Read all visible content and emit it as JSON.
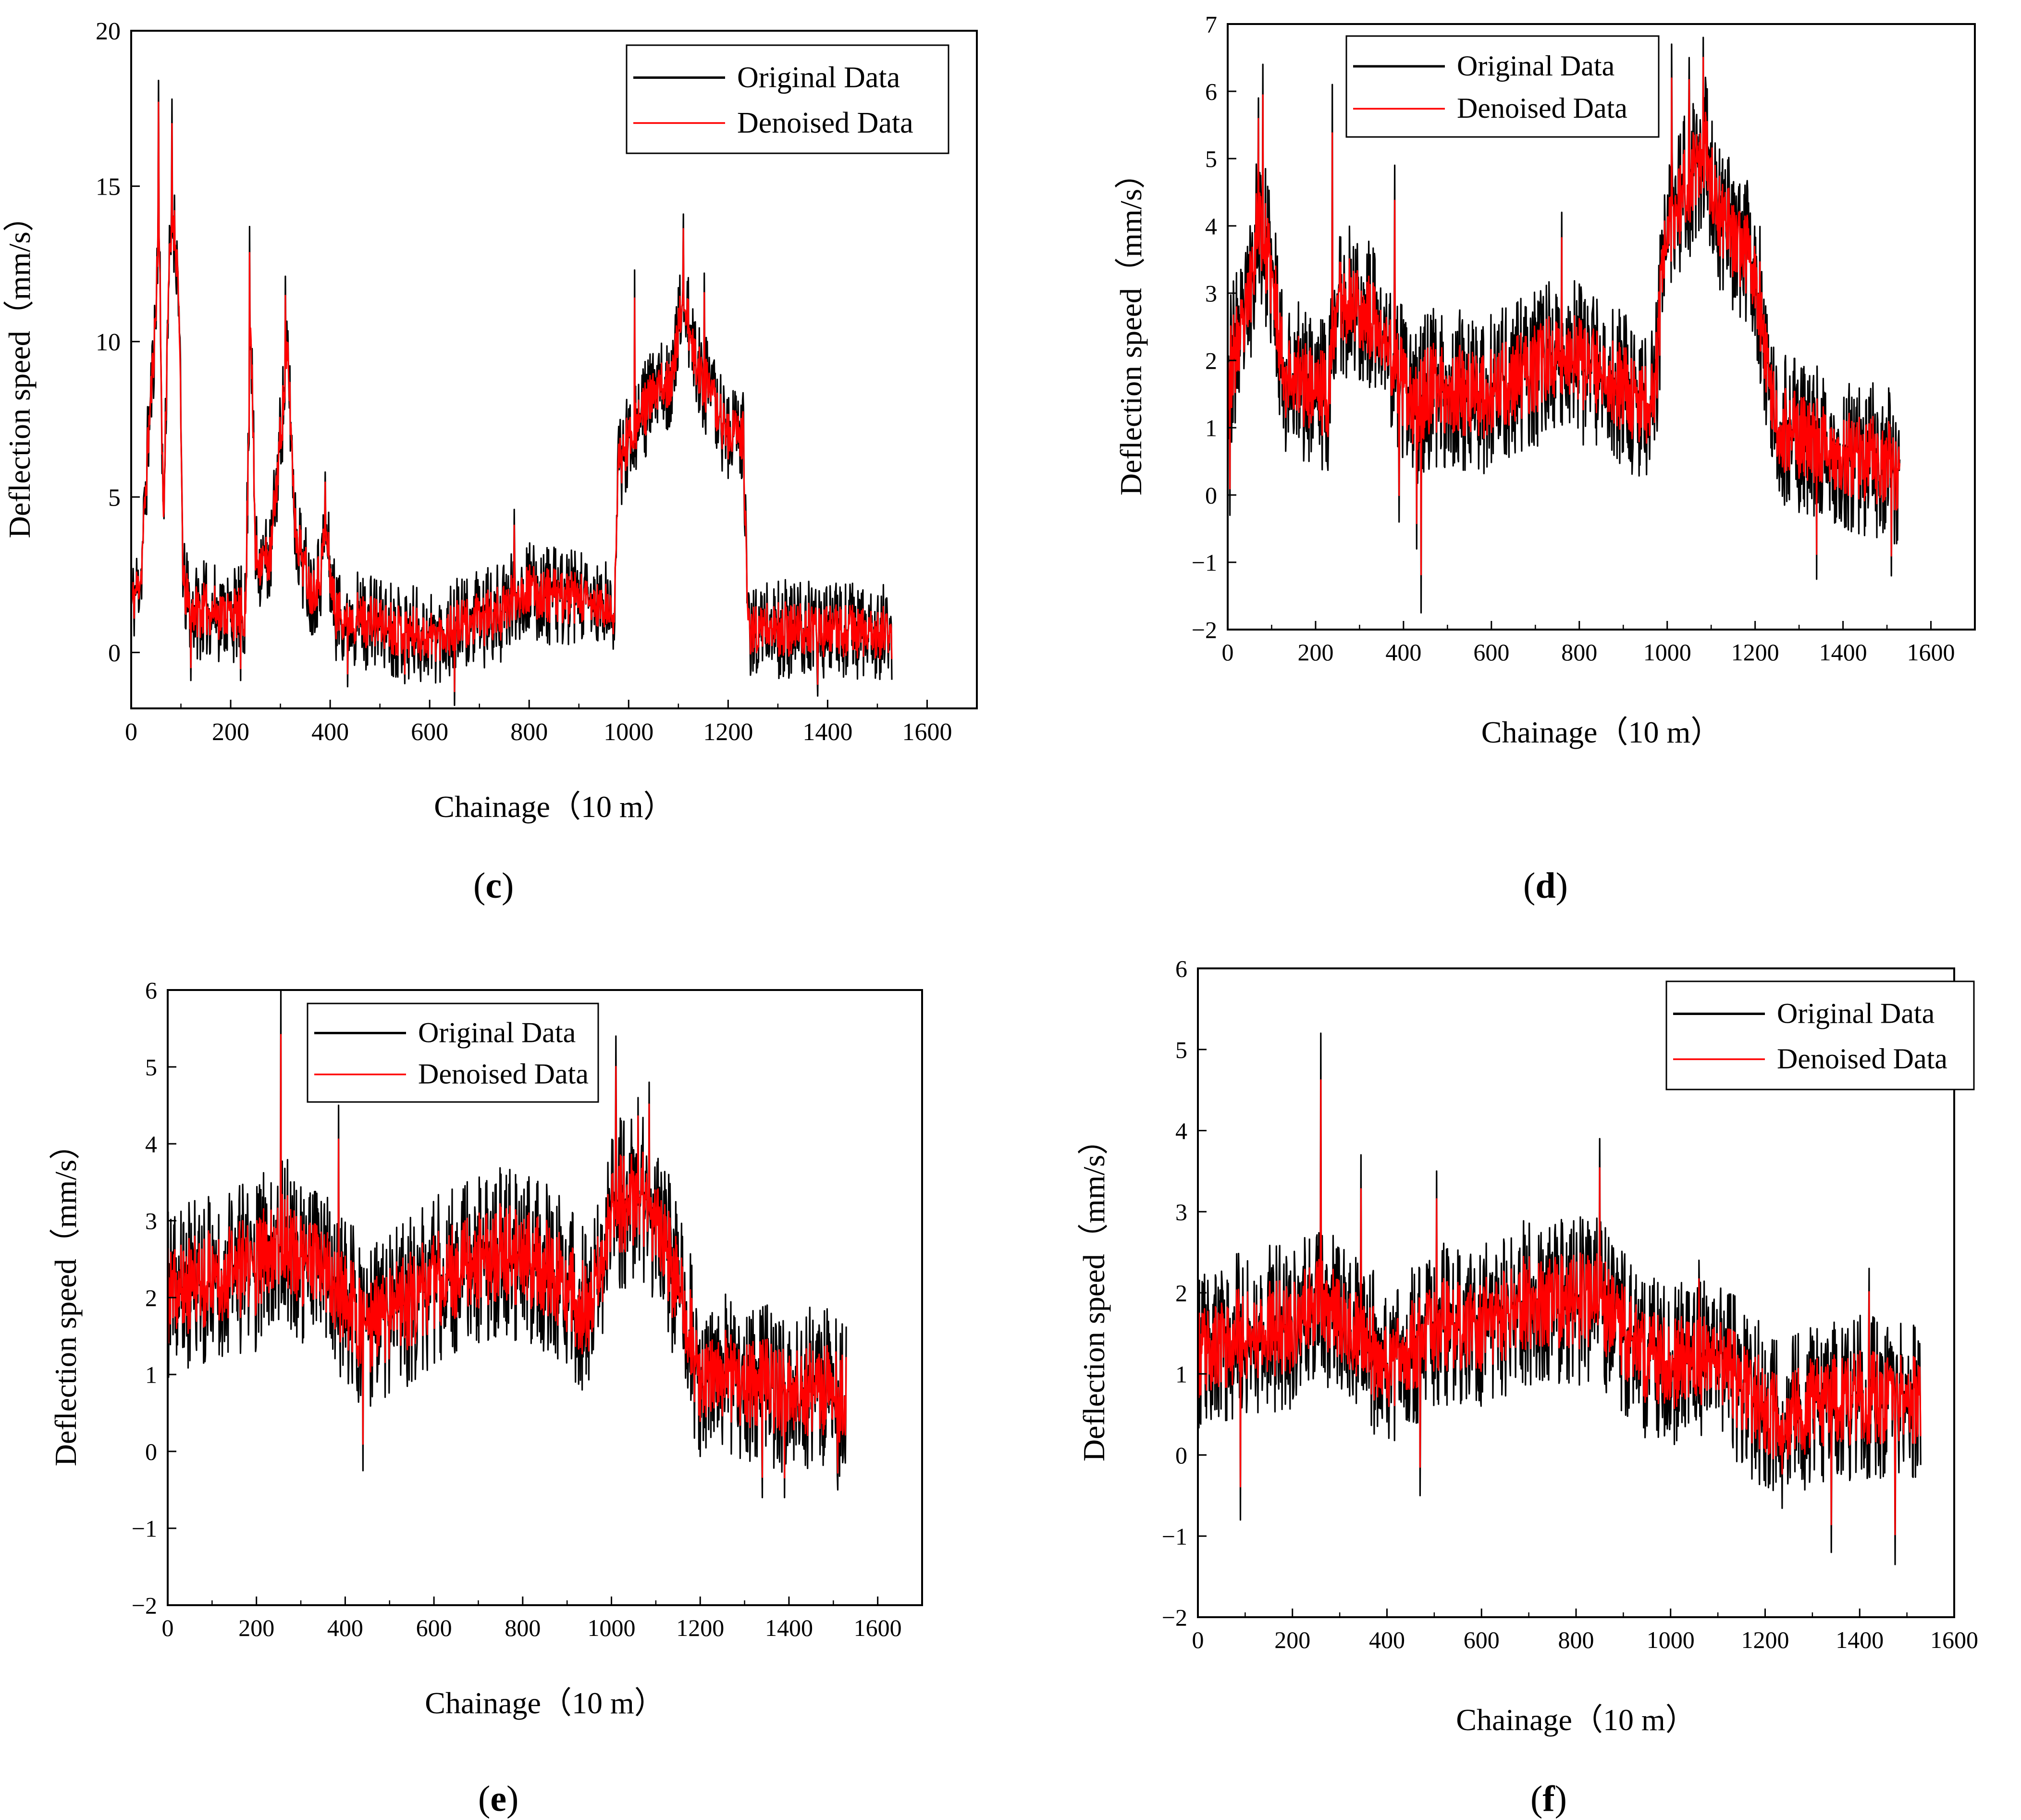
{
  "figure": {
    "panels": [
      {
        "id": "c",
        "caption_letter": "c",
        "caption_open": "(",
        "caption_close": ")"
      },
      {
        "id": "d",
        "caption_letter": "d",
        "caption_open": "(",
        "caption_close": ")"
      },
      {
        "id": "e",
        "caption_letter": "e",
        "caption_open": "(",
        "caption_close": ")"
      },
      {
        "id": "f",
        "caption_letter": "f",
        "caption_open": "(",
        "caption_close": ")"
      }
    ]
  },
  "colors": {
    "original": "#000000",
    "denoised": "#ff0000",
    "axis": "#000000",
    "background": "#ffffff"
  },
  "chart_data": [
    {
      "panel": "c",
      "type": "line",
      "title": "",
      "xlabel": "Chainage（10 m）",
      "ylabel": "Deflection speed（mm/s）",
      "xlim": [
        0,
        1700
      ],
      "ylim": [
        -1.8,
        20
      ],
      "xticks": [
        0,
        200,
        400,
        600,
        800,
        1000,
        1200,
        1400,
        1600
      ],
      "yticks": [
        0,
        5,
        10,
        15,
        20
      ],
      "legend": {
        "placement": "top-right",
        "entries": [
          "Original Data",
          "Denoised Data"
        ]
      },
      "n_points": 1530,
      "x_step": 1,
      "series": [
        {
          "name": "Original Data",
          "color": "#000000",
          "noise_amplitude": 1.0,
          "seed": 11
        },
        {
          "name": "Denoised Data",
          "color": "#ff0000",
          "noise_amplitude": 0.55,
          "seed": 11
        }
      ],
      "trend_keypoints": [
        [
          0,
          1.5
        ],
        [
          20,
          2.5
        ],
        [
          35,
          7
        ],
        [
          50,
          11
        ],
        [
          55,
          14.5
        ],
        [
          65,
          4
        ],
        [
          75,
          12
        ],
        [
          85,
          14
        ],
        [
          95,
          12
        ],
        [
          105,
          2
        ],
        [
          120,
          1.4
        ],
        [
          230,
          1.2
        ],
        [
          240,
          11
        ],
        [
          250,
          3
        ],
        [
          280,
          3
        ],
        [
          300,
          7
        ],
        [
          315,
          9.5
        ],
        [
          330,
          4
        ],
        [
          360,
          2
        ],
        [
          380,
          2.5
        ],
        [
          390,
          4
        ],
        [
          410,
          1.3
        ],
        [
          600,
          0.5
        ],
        [
          750,
          1.3
        ],
        [
          780,
          2
        ],
        [
          900,
          1.7
        ],
        [
          970,
          1.2
        ],
        [
          980,
          6
        ],
        [
          1000,
          7
        ],
        [
          1040,
          8
        ],
        [
          1090,
          9
        ],
        [
          1110,
          11.5
        ],
        [
          1130,
          9.5
        ],
        [
          1200,
          7
        ],
        [
          1230,
          7
        ],
        [
          1240,
          0.8
        ],
        [
          1530,
          0.6
        ]
      ],
      "peaks": [
        [
          55,
          18.4
        ],
        [
          82,
          17.8
        ],
        [
          238,
          13.7
        ],
        [
          310,
          12.1
        ],
        [
          390,
          5.8
        ],
        [
          770,
          4.6
        ],
        [
          1012,
          12.3
        ],
        [
          1110,
          14.1
        ],
        [
          1152,
          12.2
        ]
      ],
      "dips": [
        [
          120,
          -0.9
        ],
        [
          220,
          -0.9
        ],
        [
          435,
          -1.1
        ],
        [
          550,
          -1.0
        ],
        [
          650,
          -1.7
        ],
        [
          1380,
          -1.4
        ]
      ]
    },
    {
      "panel": "d",
      "type": "line",
      "title": "",
      "xlabel": "Chainage（10 m）",
      "ylabel": "Deflection speed（mm/s）",
      "xlim": [
        0,
        1700
      ],
      "ylim": [
        -2,
        7
      ],
      "xticks": [
        0,
        200,
        400,
        600,
        800,
        1000,
        1200,
        1400,
        1600
      ],
      "yticks": [
        -2,
        -1,
        0,
        1,
        2,
        3,
        4,
        5,
        6,
        7
      ],
      "legend": {
        "placement": "top-left",
        "entries": [
          "Original Data",
          "Denoised Data"
        ]
      },
      "n_points": 1530,
      "x_step": 1,
      "series": [
        {
          "name": "Original Data",
          "color": "#000000",
          "noise_amplitude": 0.75,
          "seed": 23
        },
        {
          "name": "Denoised Data",
          "color": "#ff0000",
          "noise_amplitude": 0.42,
          "seed": 23
        }
      ],
      "trend_keypoints": [
        [
          0,
          1.8
        ],
        [
          40,
          2.5
        ],
        [
          70,
          4.2
        ],
        [
          100,
          3.2
        ],
        [
          130,
          1.8
        ],
        [
          230,
          1.5
        ],
        [
          250,
          3
        ],
        [
          300,
          2.8
        ],
        [
          380,
          2
        ],
        [
          420,
          1.2
        ],
        [
          460,
          1.6
        ],
        [
          600,
          1.5
        ],
        [
          760,
          2.1
        ],
        [
          850,
          1.8
        ],
        [
          970,
          1.3
        ],
        [
          990,
          3.5
        ],
        [
          1040,
          4.5
        ],
        [
          1080,
          5.2
        ],
        [
          1120,
          4.2
        ],
        [
          1200,
          3.3
        ],
        [
          1250,
          1
        ],
        [
          1530,
          0.4
        ]
      ],
      "peaks": [
        [
          70,
          5.9
        ],
        [
          80,
          6.4
        ],
        [
          238,
          6.1
        ],
        [
          380,
          4.9
        ],
        [
          760,
          4.2
        ],
        [
          1010,
          6.7
        ],
        [
          1050,
          6.5
        ],
        [
          1082,
          6.8
        ]
      ],
      "dips": [
        [
          5,
          -0.3
        ],
        [
          390,
          -0.4
        ],
        [
          430,
          -0.8
        ],
        [
          440,
          -1.75
        ],
        [
          1340,
          -1.25
        ],
        [
          1510,
          -1.2
        ]
      ]
    },
    {
      "panel": "e",
      "type": "line",
      "title": "",
      "xlabel": "Chainage（10 m）",
      "ylabel": "Deflection speed（mm/s）",
      "xlim": [
        0,
        1700
      ],
      "ylim": [
        -2,
        6
      ],
      "xticks": [
        0,
        200,
        400,
        600,
        800,
        1000,
        1200,
        1400,
        1600
      ],
      "yticks": [
        -2,
        -1,
        0,
        1,
        2,
        3,
        4,
        5,
        6
      ],
      "legend": {
        "placement": "top-left",
        "entries": [
          "Original Data",
          "Denoised Data"
        ]
      },
      "n_points": 1530,
      "x_step": 1,
      "series": [
        {
          "name": "Original Data",
          "color": "#000000",
          "noise_amplitude": 0.7,
          "seed": 37
        },
        {
          "name": "Denoised Data",
          "color": "#ff0000",
          "noise_amplitude": 0.4,
          "seed": 37
        }
      ],
      "trend_keypoints": [
        [
          0,
          2
        ],
        [
          100,
          2.3
        ],
        [
          200,
          2.4
        ],
        [
          250,
          2.8
        ],
        [
          350,
          2.3
        ],
        [
          450,
          1.6
        ],
        [
          600,
          2.2
        ],
        [
          750,
          2.6
        ],
        [
          850,
          2.4
        ],
        [
          950,
          1.8
        ],
        [
          1010,
          3.2
        ],
        [
          1080,
          3.3
        ],
        [
          1140,
          2.3
        ],
        [
          1200,
          1
        ],
        [
          1530,
          0.7
        ]
      ],
      "peaks": [
        [
          255,
          6
        ],
        [
          385,
          4.5
        ],
        [
          1010,
          5.4
        ],
        [
          1060,
          4.6
        ],
        [
          1085,
          4.8
        ]
      ],
      "dips": [
        [
          440,
          -0.25
        ],
        [
          1340,
          -0.6
        ],
        [
          1390,
          -0.6
        ],
        [
          1510,
          -0.5
        ]
      ]
    },
    {
      "panel": "f",
      "type": "line",
      "title": "",
      "xlabel": "Chainage（10 m）",
      "ylabel": "Deflection speed（mm/s）",
      "xlim": [
        0,
        1600
      ],
      "ylim": [
        -2,
        6
      ],
      "xticks": [
        0,
        200,
        400,
        600,
        800,
        1000,
        1200,
        1400,
        1600
      ],
      "yticks": [
        -2,
        -1,
        0,
        1,
        2,
        3,
        4,
        5,
        6
      ],
      "legend": {
        "placement": "top-right",
        "entries": [
          "Original Data",
          "Denoised Data"
        ]
      },
      "n_points": 1530,
      "x_step": 1,
      "series": [
        {
          "name": "Original Data",
          "color": "#000000",
          "noise_amplitude": 0.65,
          "seed": 53
        },
        {
          "name": "Denoised Data",
          "color": "#ff0000",
          "noise_amplitude": 0.37,
          "seed": 53
        }
      ],
      "trend_keypoints": [
        [
          0,
          1.2
        ],
        [
          100,
          1.5
        ],
        [
          200,
          1.6
        ],
        [
          260,
          2
        ],
        [
          300,
          1.6
        ],
        [
          400,
          1.1
        ],
        [
          500,
          1.6
        ],
        [
          600,
          1.6
        ],
        [
          700,
          1.9
        ],
        [
          850,
          1.9
        ],
        [
          950,
          1.2
        ],
        [
          1100,
          1.1
        ],
        [
          1200,
          0.6
        ],
        [
          1240,
          0.3
        ],
        [
          1300,
          0.7
        ],
        [
          1530,
          0.7
        ]
      ],
      "peaks": [
        [
          260,
          5.2
        ],
        [
          345,
          3.7
        ],
        [
          505,
          3.5
        ],
        [
          850,
          3.9
        ],
        [
          1060,
          2.4
        ],
        [
          1420,
          2.3
        ]
      ],
      "dips": [
        [
          90,
          -0.8
        ],
        [
          470,
          -0.5
        ],
        [
          1340,
          -1.2
        ],
        [
          1475,
          -1.35
        ]
      ]
    }
  ]
}
